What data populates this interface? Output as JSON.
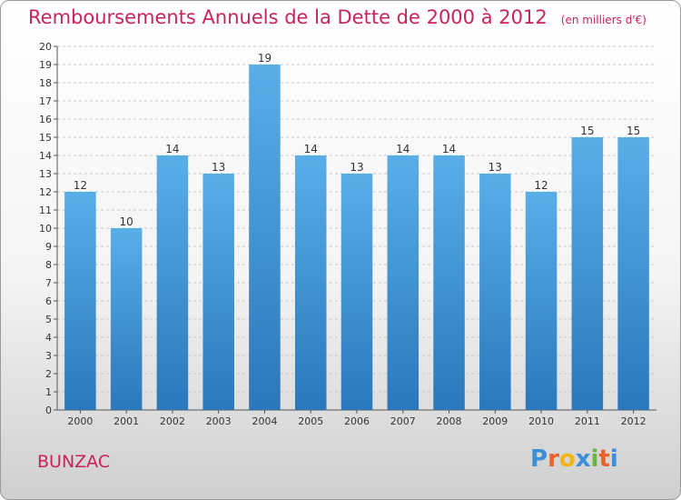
{
  "header": {
    "title": "Remboursements Annuels de la Dette de 2000 à 2012",
    "unit": "(en milliers d'€)"
  },
  "footer": {
    "place": "BUNZAC",
    "logo": [
      "P",
      "r",
      "o",
      "x",
      "i",
      "t",
      "i"
    ],
    "logo_colors": [
      "#3a8fd8",
      "#e8622a",
      "#f2b705",
      "#3a8fd8",
      "#6db33f",
      "#e8622a",
      "#3a8fd8"
    ]
  },
  "chart_data": {
    "type": "bar",
    "title": "Remboursements Annuels de la Dette de 2000 à 2012",
    "subtitle": "(en milliers d'€)",
    "categories": [
      "2000",
      "2001",
      "2002",
      "2003",
      "2004",
      "2005",
      "2006",
      "2007",
      "2008",
      "2009",
      "2010",
      "2011",
      "2012"
    ],
    "values": [
      12,
      10,
      14,
      13,
      19,
      14,
      13,
      14,
      14,
      13,
      12,
      15,
      15
    ],
    "xlabel": "",
    "ylabel": "",
    "ylim": [
      0,
      20
    ],
    "yticks": [
      0,
      1,
      2,
      3,
      4,
      5,
      6,
      7,
      8,
      9,
      10,
      11,
      12,
      13,
      14,
      15,
      16,
      17,
      18,
      19,
      20
    ],
    "grid": true,
    "bar_color_top": "#5aaee8",
    "bar_color_bottom": "#2a78bb"
  }
}
